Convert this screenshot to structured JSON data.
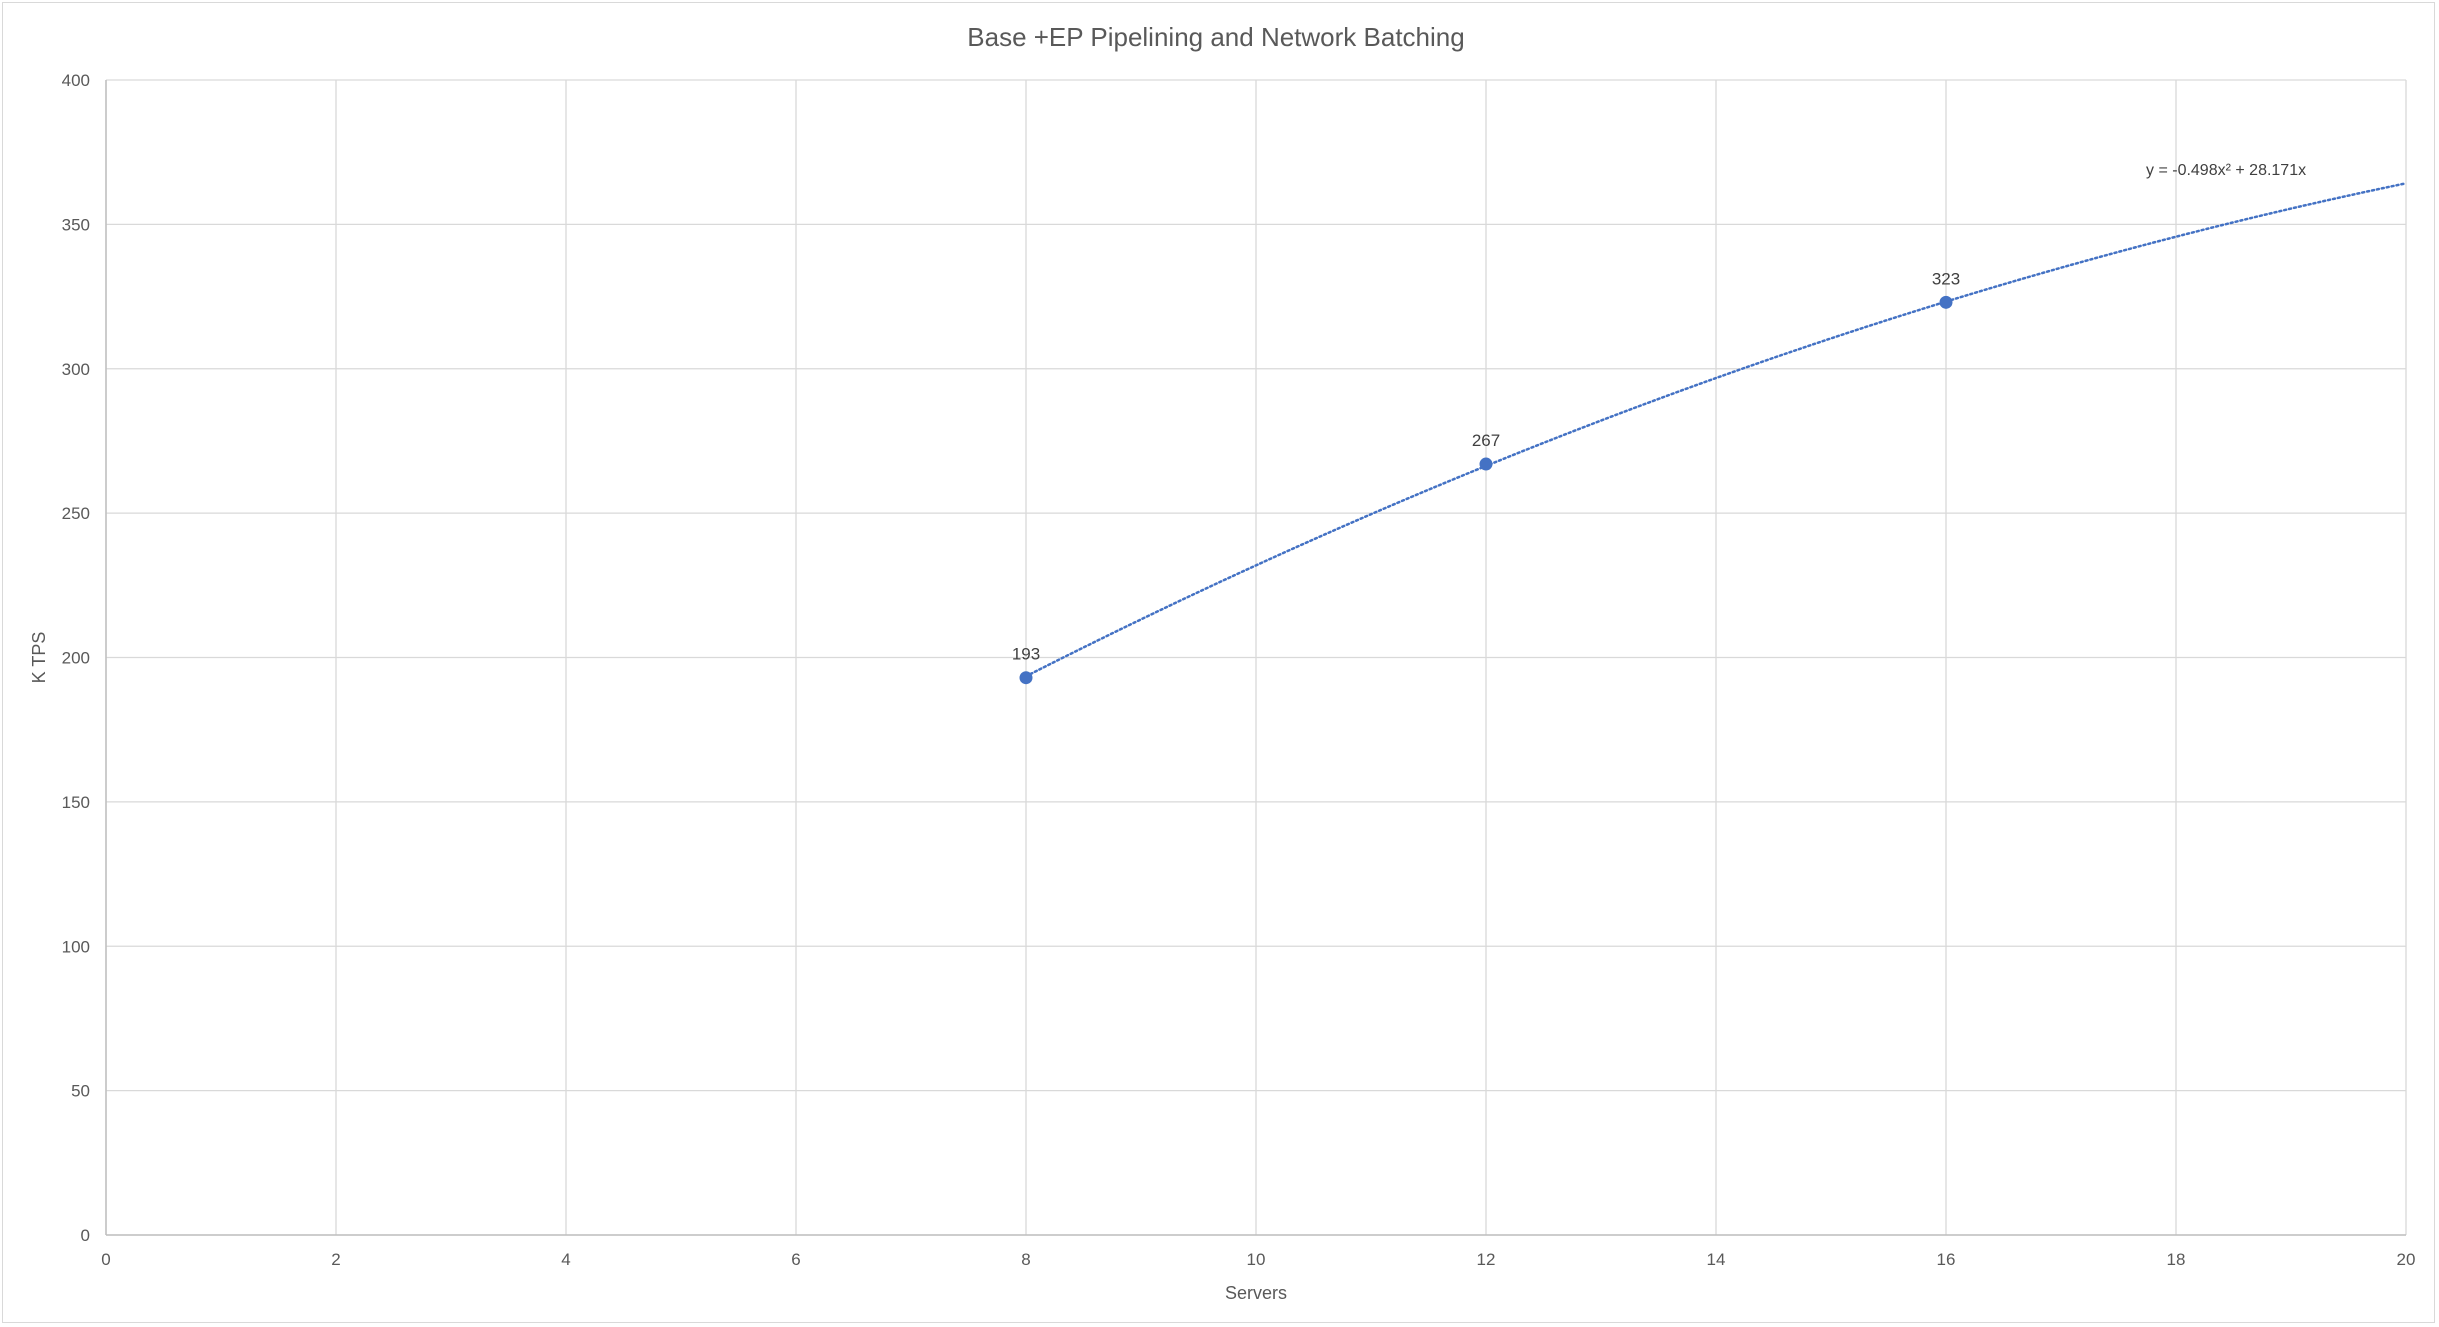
{
  "chart_data": {
    "type": "scatter",
    "title": "Base +EP Pipelining and Network Batching",
    "xlabel": "Servers",
    "ylabel": "K TPS",
    "xlim": [
      0,
      20
    ],
    "ylim": [
      0,
      400
    ],
    "x_ticks": [
      0,
      2,
      4,
      6,
      8,
      10,
      12,
      14,
      16,
      18,
      20
    ],
    "y_ticks": [
      0,
      50,
      100,
      150,
      200,
      250,
      300,
      350,
      400
    ],
    "grid": true,
    "legend": "none",
    "series": [
      {
        "x": [
          8,
          12,
          16
        ],
        "y": [
          193,
          267,
          323
        ],
        "data_labels": [
          "193",
          "267",
          "323"
        ],
        "color": "#4472c4"
      }
    ],
    "trendline": {
      "type": "polynomial",
      "coefficients": {
        "a": -0.498,
        "b": 28.171,
        "c": 0
      },
      "x_range": [
        8,
        20
      ],
      "equation_text": "y = -0.498x² + 28.171x",
      "color": "#4472c4",
      "style": "dotted"
    }
  }
}
